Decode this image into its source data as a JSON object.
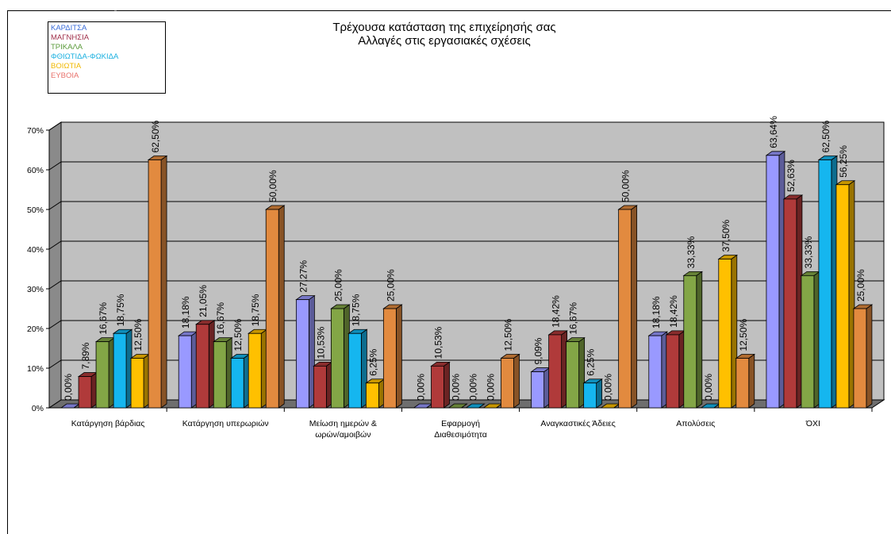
{
  "chart_data": {
    "type": "bar",
    "title": "Τρέχουσα κατάσταση της επιχείρησής σας",
    "subtitle": "Αλλαγές στις εργασιακές σχέσεις",
    "xlabel": "",
    "ylabel": "",
    "ylim": [
      0,
      70
    ],
    "yticks": [
      "0%",
      "10%",
      "20%",
      "30%",
      "40%",
      "50%",
      "60%",
      "70%"
    ],
    "grid": true,
    "legend_position": "top-left",
    "categories": [
      "Κατάργηση βάρδιας",
      "Κατάργηση υπερωριών",
      "Μείωση ημερών & ωρών/αμοιβών",
      "Εφαρμογή Διαθεσιμότητα",
      "Αναγκαστικές Άδειες",
      "Απολύσεις",
      "ΌΧΙ"
    ],
    "category_lines": [
      [
        "Κατάργηση βάρδιας"
      ],
      [
        "Κατάργηση υπερωριών"
      ],
      [
        "Μείωση ημερών &",
        "ωρών/αμοιβών"
      ],
      [
        "Εφαρμογή",
        "Διαθεσιμότητα"
      ],
      [
        "Αναγκαστικές Άδειες"
      ],
      [
        "Απολύσεις"
      ],
      [
        "ΌΧΙ"
      ]
    ],
    "series": [
      {
        "name": "ΚΑΡΔΙΤΣΑ",
        "color": "#9999ff",
        "legend_color": "#3a6cd8",
        "values": [
          0.0,
          18.18,
          27.27,
          0.0,
          9.09,
          18.18,
          63.64
        ],
        "labels": [
          "0,00%",
          "18,18%",
          "27,27%",
          "0,00%",
          "9,09%",
          "18,18%",
          "63,64%"
        ]
      },
      {
        "name": "ΜΑΓΝΗΣΙΑ",
        "color": "#b03a3a",
        "legend_color": "#a0304a",
        "values": [
          7.89,
          21.05,
          10.53,
          10.53,
          18.42,
          18.42,
          52.63
        ],
        "labels": [
          "7,89%",
          "21,05%",
          "10,53%",
          "10,53%",
          "18,42%",
          "18,42%",
          "52,63%"
        ]
      },
      {
        "name": "ΤΡΙΚΑΛΑ",
        "color": "#83a646",
        "legend_color": "#5a9a3a",
        "values": [
          16.67,
          16.67,
          25.0,
          0.0,
          16.67,
          33.33,
          33.33
        ],
        "labels": [
          "16,67%",
          "16,67%",
          "25,00%",
          "0,00%",
          "16,67%",
          "33,33%",
          "33,33%"
        ]
      },
      {
        "name": "ΦΘΙΩΤΙΔΑ-ΦΩΚΙΔΑ",
        "color": "#15b6ef",
        "legend_color": "#1ab0e0",
        "values": [
          18.75,
          12.5,
          18.75,
          0.0,
          6.25,
          0.0,
          62.5
        ],
        "labels": [
          "18,75%",
          "12,50%",
          "18,75%",
          "0,00%",
          "6,25%",
          "0,00%",
          "62,50%"
        ]
      },
      {
        "name": "ΒΟΙΩΤΙΑ",
        "color": "#ffc000",
        "legend_color": "#f0b800",
        "values": [
          12.5,
          18.75,
          6.25,
          0.0,
          0.0,
          37.5,
          56.25
        ],
        "labels": [
          "12,50%",
          "18,75%",
          "6,25%",
          "0,00%",
          "0,00%",
          "37,50%",
          "56,25%"
        ]
      },
      {
        "name": "ΕΥΒΟΙΑ",
        "color": "#e28a3f",
        "legend_color": "#e8706a",
        "values": [
          62.5,
          50.0,
          25.0,
          12.5,
          50.0,
          12.5,
          25.0
        ],
        "labels": [
          "62,50%",
          "50,00%",
          "25,00%",
          "12,50%",
          "50,00%",
          "12,50%",
          "25,00%"
        ]
      }
    ]
  }
}
